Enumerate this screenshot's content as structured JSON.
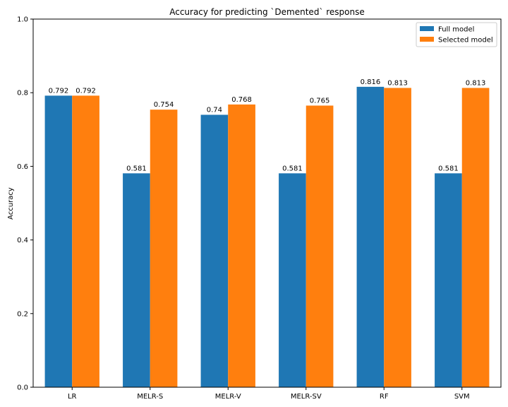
{
  "chart_data": {
    "type": "bar",
    "title": "Accuracy for predicting `Demented` response",
    "xlabel": "",
    "ylabel": "Accuracy",
    "categories": [
      "LR",
      "MELR-S",
      "MELR-V",
      "MELR-SV",
      "RF",
      "SVM"
    ],
    "series": [
      {
        "name": "Full model",
        "color": "#1f77b4",
        "values": [
          0.792,
          0.581,
          0.74,
          0.581,
          0.816,
          0.581
        ],
        "labels": [
          "0.792",
          "0.581",
          "0.74",
          "0.581",
          "0.816",
          "0.581"
        ]
      },
      {
        "name": "Selected model",
        "color": "#ff7f0e",
        "values": [
          0.792,
          0.754,
          0.768,
          0.765,
          0.813,
          0.813
        ],
        "labels": [
          "0.792",
          "0.754",
          "0.768",
          "0.765",
          "0.813",
          "0.813"
        ]
      }
    ],
    "ylim": [
      0,
      1.0
    ],
    "yticks": [
      "0.0",
      "0.2",
      "0.4",
      "0.6",
      "0.8",
      "1.0"
    ],
    "grid": false,
    "legend_position": "top-right"
  }
}
